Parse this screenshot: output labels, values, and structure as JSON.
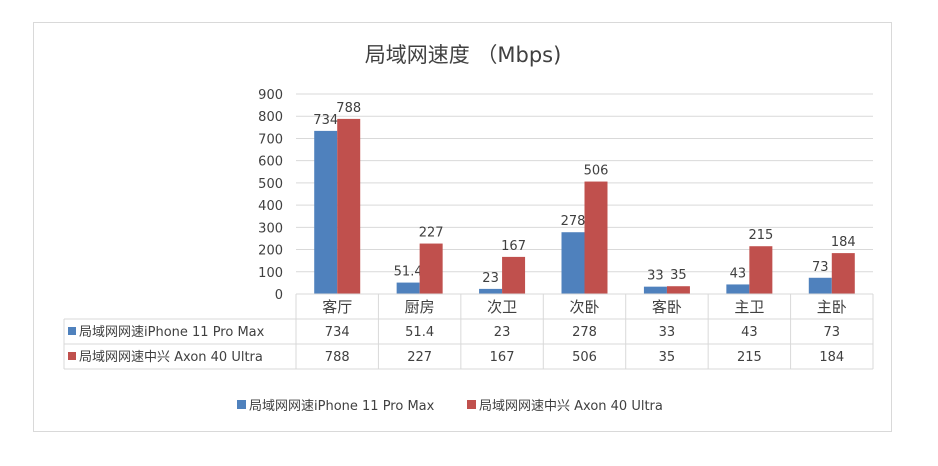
{
  "chart_data": {
    "type": "bar",
    "title": "局域网速度 （Mbps)",
    "categories": [
      "客厅",
      "厨房",
      "次卫",
      "次卧",
      "客卧",
      "主卫",
      "主卧"
    ],
    "series": [
      {
        "name": "局域网网速iPhone 11 Pro Max",
        "color": "#4f81bd",
        "values": [
          734,
          51.4,
          23,
          278,
          33,
          43,
          73
        ]
      },
      {
        "name": "局域网网速中兴 Axon 40 Ultra",
        "color": "#c0504d",
        "values": [
          788,
          227,
          167,
          506,
          35,
          215,
          184
        ]
      }
    ],
    "ylim": [
      0,
      900
    ],
    "yticks": [
      0,
      100,
      200,
      300,
      400,
      500,
      600,
      700,
      800,
      900
    ],
    "grid": true,
    "data_table": true,
    "legend": "bottom"
  }
}
